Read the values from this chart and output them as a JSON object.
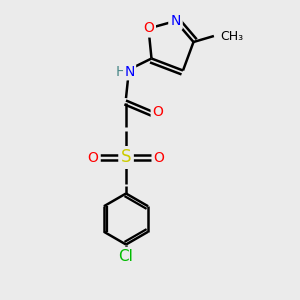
{
  "bg_color": "#ebebeb",
  "line_color": "#000000",
  "bond_width": 1.8,
  "atom_colors": {
    "O": "#ff0000",
    "N": "#0000ff",
    "S": "#cccc00",
    "Cl": "#00bb00",
    "H": "#4a8888",
    "C": "#000000"
  },
  "font_size": 10
}
